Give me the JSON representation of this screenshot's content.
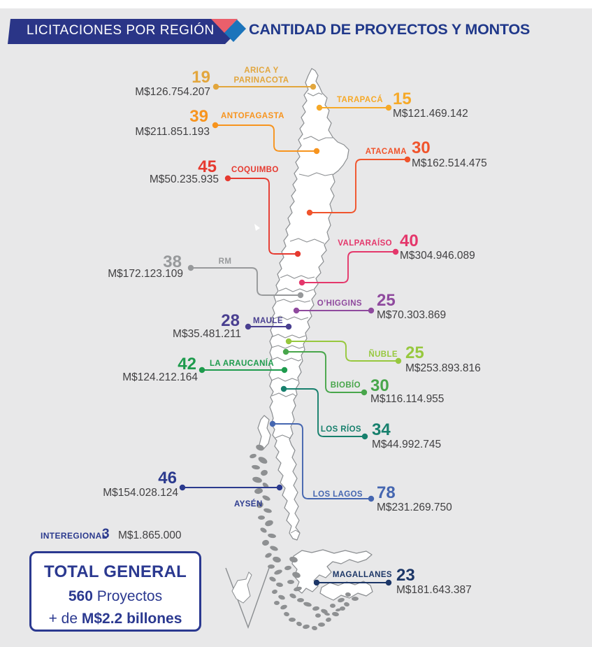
{
  "header": {
    "banner_label": "LICITACIONES POR REGIÓN",
    "title": "CANTIDAD DE PROYECTOS Y MONTOS",
    "banner_color": "#2a3587",
    "accent_red": "#eb5f6b",
    "accent_blue": "#1b74bb",
    "title_color": "#20388a"
  },
  "map": {
    "land_fill": "#ffffff",
    "stroke": "#8a8d90",
    "archipelago_fill": "#8e9092",
    "background": "#e8e8e9"
  },
  "chart_data": {
    "type": "table",
    "title": "LICITACIONES POR REGIÓN — CANTIDAD DE PROYECTOS Y MONTOS",
    "columns": [
      "región",
      "proyectos",
      "monto"
    ],
    "rows": [
      [
        "ARICA Y PARINACOTA",
        19,
        "M$126.754.207"
      ],
      [
        "TARAPACÁ",
        15,
        "M$121.469.142"
      ],
      [
        "ANTOFAGASTA",
        39,
        "M$211.851.193"
      ],
      [
        "ATACAMA",
        30,
        "M$162.514.475"
      ],
      [
        "COQUIMBO",
        45,
        "M$50.235.935"
      ],
      [
        "VALPARAÍSO",
        40,
        "M$304.946.089"
      ],
      [
        "RM",
        38,
        "M$172.123.109"
      ],
      [
        "O’HIGGINS",
        25,
        "M$70.303.869"
      ],
      [
        "MAULE",
        28,
        "M$35.481.211"
      ],
      [
        "ÑUBLE",
        25,
        "M$253.893.816"
      ],
      [
        "BIOBÍO",
        30,
        "M$116.114.955"
      ],
      [
        "LA ARAUCANÍA",
        42,
        "M$124.212.164"
      ],
      [
        "LOS RÍOS",
        34,
        "M$44.992.745"
      ],
      [
        "LOS LAGOS",
        78,
        "M$231.269.750"
      ],
      [
        "AYSÉN",
        46,
        "M$154.028.124"
      ],
      [
        "MAGALLANES",
        23,
        "M$181.643.387"
      ],
      [
        "INTEREGIONAL",
        3,
        "M$1.865.000"
      ]
    ],
    "total": {
      "proyectos": 560,
      "monto": "+ de M$2.2 billones"
    }
  },
  "regions": [
    {
      "id": "arica",
      "label": "ARICA Y PARINACOTA",
      "count": "19",
      "amount": "M$126.754.207",
      "color": "#e2a63d"
    },
    {
      "id": "tarapaca",
      "label": "TARAPACÁ",
      "count": "15",
      "amount": "M$121.469.142",
      "color": "#f6a928"
    },
    {
      "id": "antofagasta",
      "label": "ANTOFAGASTA",
      "count": "39",
      "amount": "M$211.851.193",
      "color": "#f7941e"
    },
    {
      "id": "atacama",
      "label": "ATACAMA",
      "count": "30",
      "amount": "M$162.514.475",
      "color": "#f0542c"
    },
    {
      "id": "coquimbo",
      "label": "COQUIMBO",
      "count": "45",
      "amount": "M$50.235.935",
      "color": "#e63a30"
    },
    {
      "id": "valparaiso",
      "label": "VALPARAÍSO",
      "count": "40",
      "amount": "M$304.946.089",
      "color": "#e4376b"
    },
    {
      "id": "rm",
      "label": "RM",
      "count": "38",
      "amount": "M$172.123.109",
      "color": "#97999b"
    },
    {
      "id": "ohiggins",
      "label": "O’HIGGINS",
      "count": "25",
      "amount": "M$70.303.869",
      "color": "#8f4a9e"
    },
    {
      "id": "maule",
      "label": "MAULE",
      "count": "28",
      "amount": "M$35.481.211",
      "color": "#493f90"
    },
    {
      "id": "nuble",
      "label": "ÑUBLE",
      "count": "25",
      "amount": "M$253.893.816",
      "color": "#97c83e"
    },
    {
      "id": "biobio",
      "label": "BIOBÍO",
      "count": "30",
      "amount": "M$116.114.955",
      "color": "#48a64b"
    },
    {
      "id": "araucania",
      "label": "LA ARAUCANÍA",
      "count": "42",
      "amount": "M$124.212.164",
      "color": "#1e9b4d"
    },
    {
      "id": "losrios",
      "label": "LOS RÍOS",
      "count": "34",
      "amount": "M$44.992.745",
      "color": "#17806d"
    },
    {
      "id": "loslagos",
      "label": "LOS LAGOS",
      "count": "78",
      "amount": "M$231.269.750",
      "color": "#4566b0"
    },
    {
      "id": "aysen",
      "label": "AYSÉN",
      "count": "46",
      "amount": "M$154.028.124",
      "color": "#2b3a8e"
    },
    {
      "id": "magallanes",
      "label": "MAGALLANES",
      "count": "23",
      "amount": "M$181.643.387",
      "color": "#1c3667"
    }
  ],
  "interregional": {
    "label": "INTEREGIONAL",
    "count": "3",
    "amount": "M$1.865.000",
    "color": "#2b3a8e"
  },
  "total": {
    "title": "TOTAL GENERAL",
    "projects_count": "560",
    "projects_label": " Proyectos",
    "amount_prefix": "+ de ",
    "amount": "M$2.2 billones",
    "color": "#2b3990"
  }
}
